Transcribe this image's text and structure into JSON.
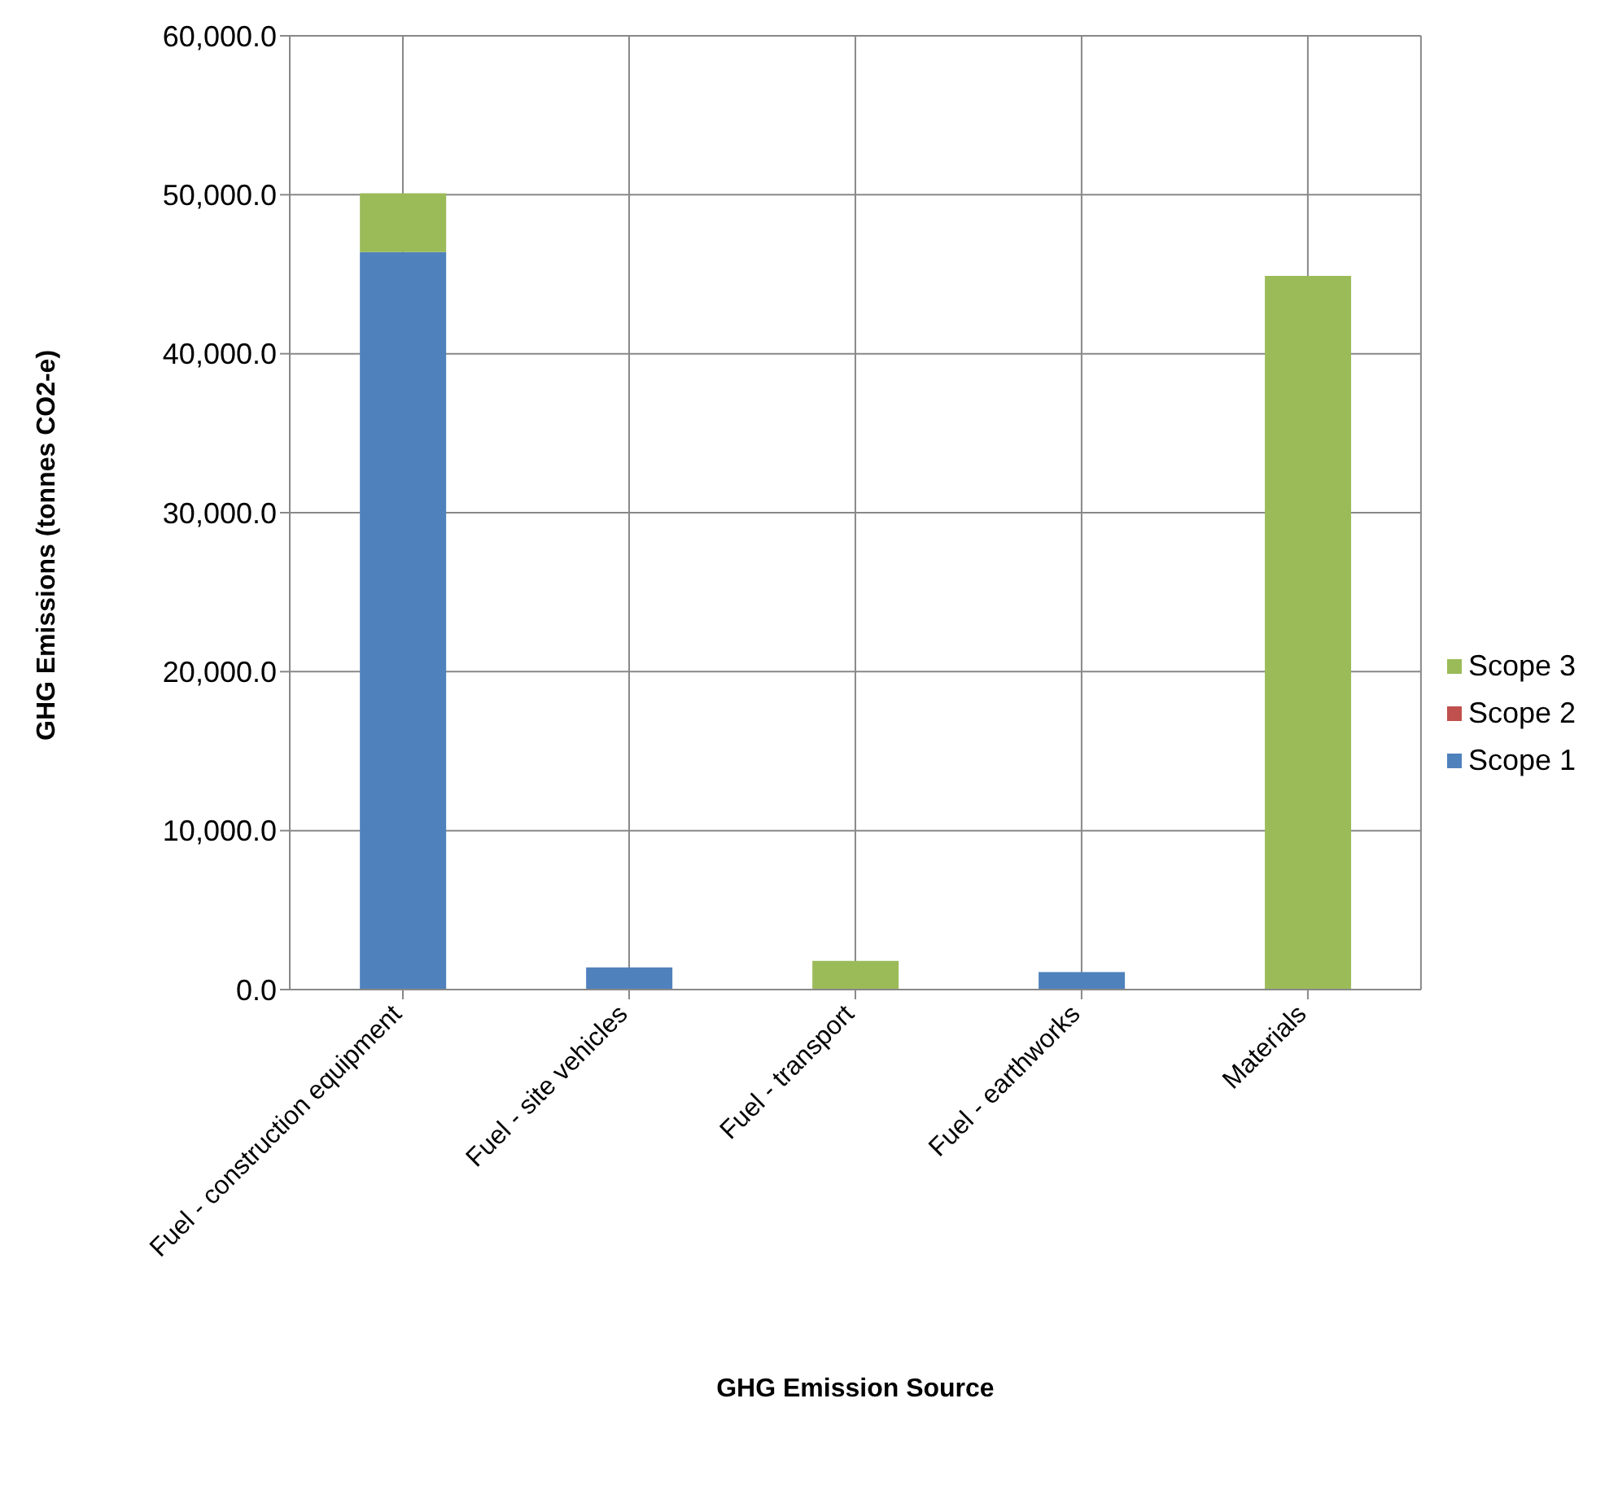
{
  "chart_data": {
    "type": "bar",
    "stacked": true,
    "xlabel": "GHG Emission Source",
    "ylabel": "GHG Emissions (tonnes CO2-e)",
    "categories": [
      "Fuel - construction equipment",
      "Fuel - site vehicles",
      "Fuel - transport",
      "Fuel - earthworks",
      "Materials"
    ],
    "series": [
      {
        "name": "Scope 1",
        "color": "#4f81bd",
        "values": [
          46400,
          1400,
          0,
          1100,
          0
        ]
      },
      {
        "name": "Scope 2",
        "color": "#c0504d",
        "values": [
          0,
          0,
          0,
          0,
          0
        ]
      },
      {
        "name": "Scope 3",
        "color": "#9bbb59",
        "values": [
          3700,
          0,
          1800,
          0,
          44900
        ]
      }
    ],
    "ylim": [
      0,
      60000
    ],
    "yticks": [
      {
        "value": 0,
        "label": "0.0"
      },
      {
        "value": 10000,
        "label": "10,000.0"
      },
      {
        "value": 20000,
        "label": "20,000.0"
      },
      {
        "value": 30000,
        "label": "30,000.0"
      },
      {
        "value": 40000,
        "label": "40,000.0"
      },
      {
        "value": 50000,
        "label": "50,000.0"
      },
      {
        "value": 60000,
        "label": "60,000.0"
      }
    ],
    "grid": true,
    "legend": "right"
  }
}
